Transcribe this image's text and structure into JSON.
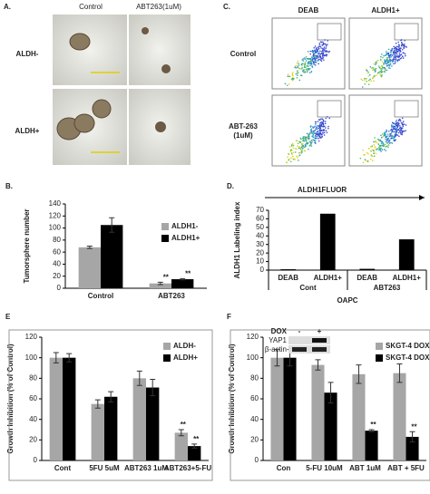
{
  "panels": {
    "a": {
      "letter": "A.",
      "columns": [
        "Control",
        "ABT263(1uM)"
      ],
      "rows": [
        "ALDH-",
        "ALDH+"
      ]
    },
    "c": {
      "letter": "C.",
      "columns": [
        "DEAB",
        "ALDH1+"
      ],
      "rows": [
        "Control",
        "ABT-263\n(1uM)"
      ],
      "axis_label": "ALDH1FLUOR"
    }
  },
  "chart_data": [
    {
      "type": "bar",
      "panel": "B.",
      "ylabel": "Tumorsphere number",
      "categories": [
        "Control",
        "ABT263"
      ],
      "ylim": [
        0,
        140
      ],
      "yticks": [
        0,
        20,
        40,
        60,
        80,
        100,
        120,
        140
      ],
      "legend": "upper right",
      "series": [
        {
          "name": "ALDH1-",
          "color": "#a6a6a6",
          "values": [
            68,
            8
          ],
          "errors": [
            2,
            2
          ],
          "annotations": [
            null,
            "**"
          ]
        },
        {
          "name": "ALDH1+",
          "color": "#000000",
          "values": [
            105,
            15
          ],
          "errors": [
            12,
            1
          ],
          "annotations": [
            null,
            "**"
          ]
        }
      ]
    },
    {
      "type": "bar",
      "panel": "D.",
      "ylabel": "ALDH1 Labeling index",
      "xlabel": "OAPC",
      "categories": [
        "DEAB",
        "ALDH1+",
        "DEAB",
        "ALDH1+"
      ],
      "groups": [
        "Cont",
        "ABT263"
      ],
      "ylim": [
        0,
        70
      ],
      "yticks": [
        0,
        10,
        20,
        30,
        40,
        50,
        60,
        70
      ],
      "series": [
        {
          "color": "#000000",
          "values": [
            1,
            66,
            1.5,
            36
          ]
        }
      ]
    },
    {
      "type": "bar",
      "panel": "E",
      "ylabel": "Growth Inhibition (% of Control)",
      "categories": [
        "Cont",
        "5FU 5uM",
        "ABT263 1uM",
        "ABT263+5-FU"
      ],
      "ylim": [
        0,
        120
      ],
      "yticks": [
        0,
        20,
        40,
        60,
        80,
        100,
        120
      ],
      "legend": "upper right",
      "series": [
        {
          "name": "ALDH-",
          "color": "#a6a6a6",
          "values": [
            100,
            55,
            80,
            27
          ],
          "errors": [
            5,
            4,
            7,
            3
          ],
          "annotations": [
            null,
            null,
            null,
            "**"
          ]
        },
        {
          "name": "ALDH+",
          "color": "#000000",
          "values": [
            100,
            62,
            71,
            14
          ],
          "errors": [
            4,
            5,
            8,
            2
          ],
          "annotations": [
            null,
            null,
            null,
            "**"
          ]
        }
      ]
    },
    {
      "type": "bar",
      "panel": "F",
      "ylabel": "Growth Inhibition (% of Control)",
      "categories": [
        "Con",
        "5-FU 10uM",
        "ABT 1uM",
        "ABT + 5FU"
      ],
      "ylim": [
        0,
        120
      ],
      "yticks": [
        0,
        20,
        40,
        60,
        80,
        100,
        120
      ],
      "legend": "upper right",
      "inset": {
        "treatment": "DOX",
        "lanes": [
          "-",
          "+"
        ],
        "proteins": [
          "YAP1",
          "β-actin"
        ]
      },
      "series": [
        {
          "name": "SKGT-4 DOX-",
          "color": "#a6a6a6",
          "values": [
            100,
            93,
            84,
            85
          ],
          "errors": [
            8,
            5,
            9,
            9
          ],
          "annotations": [
            null,
            null,
            null,
            null
          ]
        },
        {
          "name": "SKGT-4 DOX+",
          "color": "#000000",
          "values": [
            100,
            66,
            29,
            23
          ],
          "errors": [
            8,
            10,
            1,
            5
          ],
          "annotations": [
            null,
            null,
            "**",
            "**"
          ]
        }
      ]
    }
  ]
}
